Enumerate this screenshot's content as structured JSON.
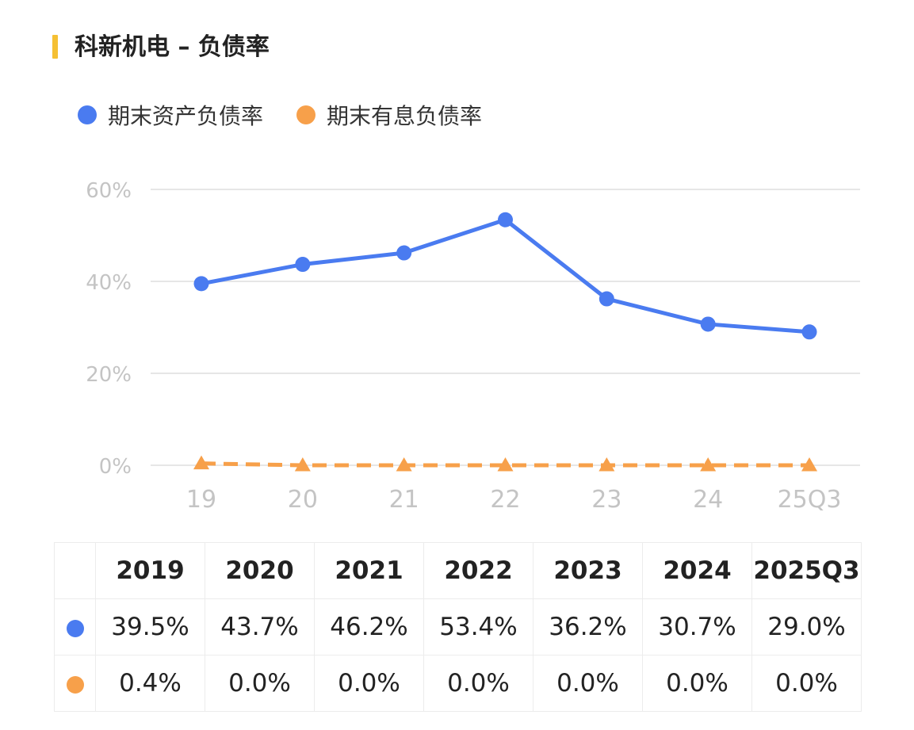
{
  "title": "科新机电 – 负债率",
  "colors": {
    "title_bar": "#f5c033",
    "series_a": "#4a7bf0",
    "series_b": "#f7a04a",
    "grid": "#e6e6e6",
    "axis_text": "#c4c4c4"
  },
  "legend": [
    {
      "label": "期末资产负债率",
      "marker": "circle-icon"
    },
    {
      "label": "期末有息负债率",
      "marker": "circle-icon"
    }
  ],
  "chart_data": {
    "type": "line",
    "categories": [
      "19",
      "20",
      "21",
      "22",
      "23",
      "24",
      "25Q3"
    ],
    "y_ticks": [
      "0%",
      "20%",
      "40%",
      "60%"
    ],
    "ylim": [
      0,
      60
    ],
    "series": [
      {
        "name": "期末资产负债率",
        "values": [
          39.5,
          43.7,
          46.2,
          53.4,
          36.2,
          30.7,
          29.0
        ],
        "marker": "circle",
        "line": "solid"
      },
      {
        "name": "期末有息负债率",
        "values": [
          0.4,
          0.0,
          0.0,
          0.0,
          0.0,
          0.0,
          0.0
        ],
        "marker": "triangle",
        "line": "dashed"
      }
    ]
  },
  "table": {
    "headers": [
      "2019",
      "2020",
      "2021",
      "2022",
      "2023",
      "2024",
      "2025Q3"
    ],
    "rows": [
      {
        "values": [
          "39.5%",
          "43.7%",
          "46.2%",
          "53.4%",
          "36.2%",
          "30.7%",
          "29.0%"
        ]
      },
      {
        "values": [
          "0.4%",
          "0.0%",
          "0.0%",
          "0.0%",
          "0.0%",
          "0.0%",
          "0.0%"
        ]
      }
    ]
  }
}
